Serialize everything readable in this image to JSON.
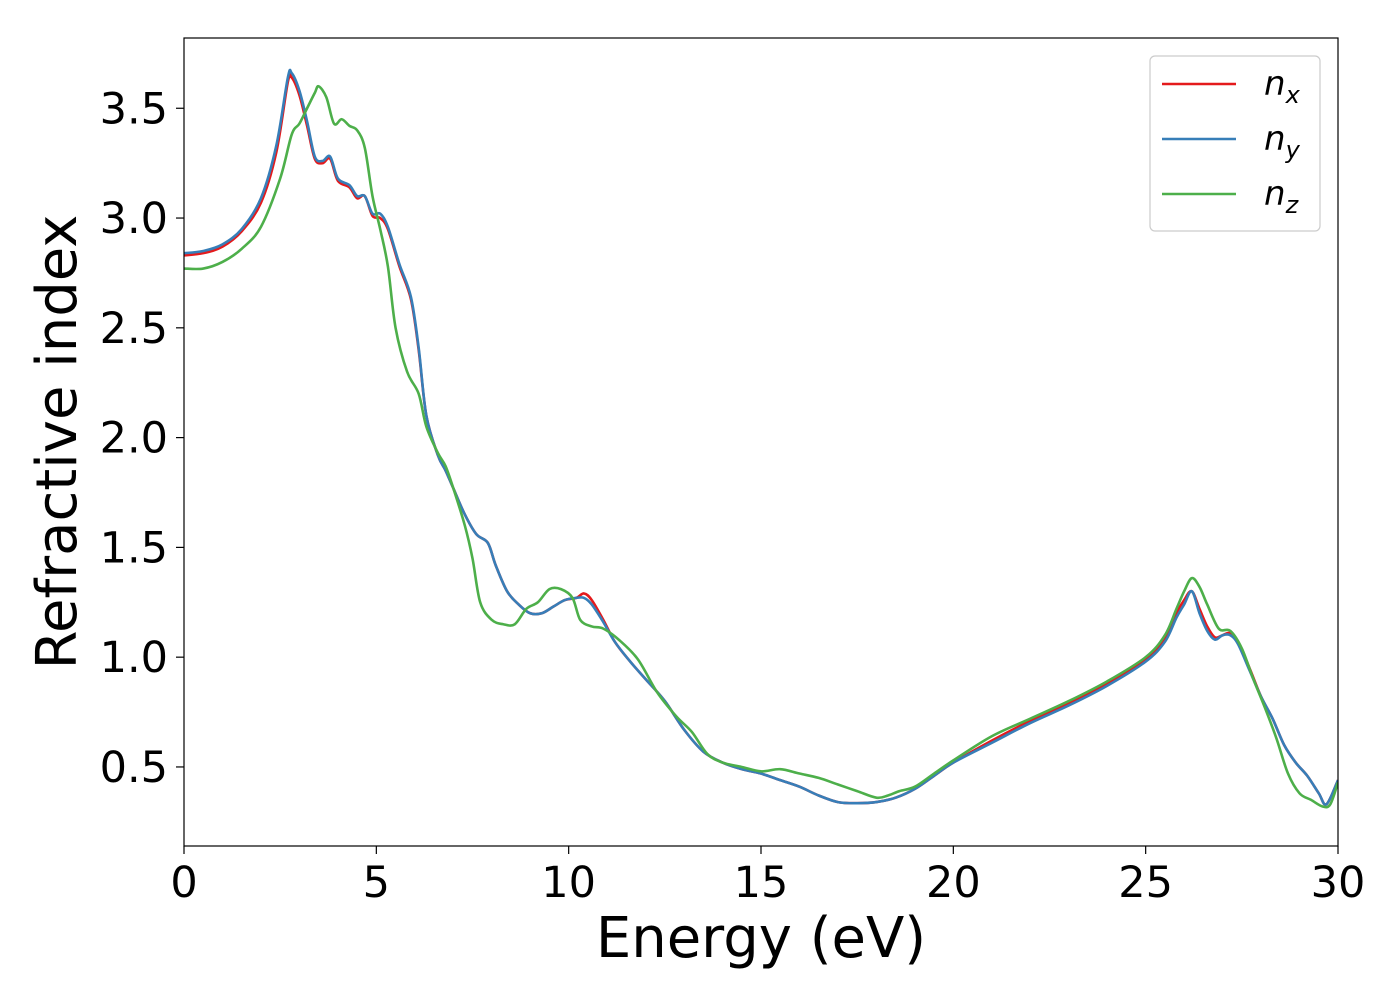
{
  "chart_data": {
    "type": "line",
    "xlabel": "Energy (eV)",
    "ylabel": "Refractive index",
    "xlim": [
      0,
      30
    ],
    "ylim": [
      0.14,
      3.82
    ],
    "xticks": [
      0,
      5,
      10,
      15,
      20,
      25,
      30
    ],
    "yticks": [
      0.5,
      1.0,
      1.5,
      2.0,
      2.5,
      3.0,
      3.5
    ],
    "xtick_labels": [
      "0",
      "5",
      "10",
      "15",
      "20",
      "25",
      "30"
    ],
    "ytick_labels": [
      "0.5",
      "1.0",
      "1.5",
      "2.0",
      "2.5",
      "3.0",
      "3.5"
    ],
    "grid": false,
    "legend_position": "top-right",
    "series": [
      {
        "name": "n_x",
        "legend_base": "n",
        "legend_sub": "x",
        "color": "#e41a1c",
        "points": [
          [
            0,
            2.83
          ],
          [
            0.5,
            2.84
          ],
          [
            1.0,
            2.87
          ],
          [
            1.5,
            2.94
          ],
          [
            2.0,
            3.07
          ],
          [
            2.4,
            3.3
          ],
          [
            2.7,
            3.62
          ],
          [
            2.8,
            3.64
          ],
          [
            3.0,
            3.56
          ],
          [
            3.2,
            3.42
          ],
          [
            3.4,
            3.27
          ],
          [
            3.6,
            3.25
          ],
          [
            3.8,
            3.27
          ],
          [
            4.0,
            3.17
          ],
          [
            4.3,
            3.14
          ],
          [
            4.5,
            3.09
          ],
          [
            4.7,
            3.1
          ],
          [
            4.9,
            3.01
          ],
          [
            5.1,
            3.0
          ],
          [
            5.3,
            2.95
          ],
          [
            5.6,
            2.78
          ],
          [
            5.9,
            2.63
          ],
          [
            6.1,
            2.4
          ],
          [
            6.3,
            2.1
          ],
          [
            6.6,
            1.92
          ],
          [
            6.8,
            1.85
          ],
          [
            7.0,
            1.77
          ],
          [
            7.3,
            1.65
          ],
          [
            7.6,
            1.56
          ],
          [
            7.9,
            1.52
          ],
          [
            8.1,
            1.42
          ],
          [
            8.4,
            1.3
          ],
          [
            8.7,
            1.24
          ],
          [
            9.0,
            1.2
          ],
          [
            9.3,
            1.2
          ],
          [
            9.6,
            1.23
          ],
          [
            9.9,
            1.26
          ],
          [
            10.2,
            1.27
          ],
          [
            10.4,
            1.29
          ],
          [
            10.6,
            1.26
          ],
          [
            10.9,
            1.17
          ],
          [
            11.2,
            1.07
          ],
          [
            11.6,
            0.98
          ],
          [
            12.0,
            0.9
          ],
          [
            12.5,
            0.8
          ],
          [
            13.0,
            0.67
          ],
          [
            13.5,
            0.57
          ],
          [
            14.0,
            0.52
          ],
          [
            14.5,
            0.49
          ],
          [
            15.0,
            0.47
          ],
          [
            15.5,
            0.44
          ],
          [
            16.0,
            0.41
          ],
          [
            16.5,
            0.37
          ],
          [
            17.0,
            0.34
          ],
          [
            17.5,
            0.335
          ],
          [
            18.0,
            0.34
          ],
          [
            18.5,
            0.36
          ],
          [
            19.0,
            0.4
          ],
          [
            19.5,
            0.46
          ],
          [
            20.0,
            0.52
          ],
          [
            21.0,
            0.62
          ],
          [
            22.0,
            0.71
          ],
          [
            23.0,
            0.79
          ],
          [
            24.0,
            0.88
          ],
          [
            25.0,
            0.99
          ],
          [
            25.5,
            1.08
          ],
          [
            25.8,
            1.2
          ],
          [
            26.0,
            1.26
          ],
          [
            26.2,
            1.3
          ],
          [
            26.4,
            1.22
          ],
          [
            26.6,
            1.14
          ],
          [
            26.8,
            1.09
          ],
          [
            27.0,
            1.1
          ],
          [
            27.2,
            1.11
          ],
          [
            27.4,
            1.07
          ],
          [
            27.7,
            0.95
          ],
          [
            28.0,
            0.82
          ],
          [
            28.3,
            0.72
          ],
          [
            28.6,
            0.6
          ],
          [
            28.9,
            0.52
          ],
          [
            29.2,
            0.46
          ],
          [
            29.5,
            0.38
          ],
          [
            29.7,
            0.33
          ],
          [
            30.0,
            0.44
          ]
        ]
      },
      {
        "name": "n_y",
        "legend_base": "n",
        "legend_sub": "y",
        "color": "#377eb8",
        "points": [
          [
            0,
            2.84
          ],
          [
            0.5,
            2.85
          ],
          [
            1.0,
            2.88
          ],
          [
            1.5,
            2.95
          ],
          [
            2.0,
            3.09
          ],
          [
            2.4,
            3.33
          ],
          [
            2.7,
            3.64
          ],
          [
            2.8,
            3.66
          ],
          [
            3.0,
            3.58
          ],
          [
            3.2,
            3.44
          ],
          [
            3.4,
            3.28
          ],
          [
            3.6,
            3.26
          ],
          [
            3.8,
            3.28
          ],
          [
            4.0,
            3.18
          ],
          [
            4.3,
            3.15
          ],
          [
            4.5,
            3.1
          ],
          [
            4.7,
            3.1
          ],
          [
            4.9,
            3.02
          ],
          [
            5.1,
            3.02
          ],
          [
            5.3,
            2.96
          ],
          [
            5.6,
            2.79
          ],
          [
            5.9,
            2.64
          ],
          [
            6.1,
            2.41
          ],
          [
            6.3,
            2.1
          ],
          [
            6.6,
            1.92
          ],
          [
            6.8,
            1.85
          ],
          [
            7.0,
            1.77
          ],
          [
            7.3,
            1.65
          ],
          [
            7.6,
            1.56
          ],
          [
            7.9,
            1.52
          ],
          [
            8.1,
            1.42
          ],
          [
            8.4,
            1.3
          ],
          [
            8.7,
            1.24
          ],
          [
            9.0,
            1.2
          ],
          [
            9.3,
            1.2
          ],
          [
            9.6,
            1.23
          ],
          [
            9.9,
            1.26
          ],
          [
            10.2,
            1.27
          ],
          [
            10.4,
            1.27
          ],
          [
            10.6,
            1.24
          ],
          [
            10.9,
            1.16
          ],
          [
            11.2,
            1.07
          ],
          [
            11.6,
            0.98
          ],
          [
            12.0,
            0.9
          ],
          [
            12.5,
            0.8
          ],
          [
            13.0,
            0.67
          ],
          [
            13.5,
            0.57
          ],
          [
            14.0,
            0.52
          ],
          [
            14.5,
            0.49
          ],
          [
            15.0,
            0.47
          ],
          [
            15.5,
            0.44
          ],
          [
            16.0,
            0.41
          ],
          [
            16.5,
            0.37
          ],
          [
            17.0,
            0.34
          ],
          [
            17.5,
            0.335
          ],
          [
            18.0,
            0.34
          ],
          [
            18.5,
            0.36
          ],
          [
            19.0,
            0.4
          ],
          [
            19.5,
            0.46
          ],
          [
            20.0,
            0.52
          ],
          [
            21.0,
            0.61
          ],
          [
            22.0,
            0.7
          ],
          [
            23.0,
            0.78
          ],
          [
            24.0,
            0.87
          ],
          [
            25.0,
            0.98
          ],
          [
            25.5,
            1.07
          ],
          [
            25.8,
            1.18
          ],
          [
            26.0,
            1.24
          ],
          [
            26.2,
            1.3
          ],
          [
            26.4,
            1.2
          ],
          [
            26.6,
            1.12
          ],
          [
            26.8,
            1.08
          ],
          [
            27.0,
            1.1
          ],
          [
            27.2,
            1.1
          ],
          [
            27.4,
            1.06
          ],
          [
            27.7,
            0.94
          ],
          [
            28.0,
            0.82
          ],
          [
            28.3,
            0.72
          ],
          [
            28.6,
            0.6
          ],
          [
            28.9,
            0.52
          ],
          [
            29.2,
            0.46
          ],
          [
            29.5,
            0.38
          ],
          [
            29.7,
            0.33
          ],
          [
            30.0,
            0.44
          ]
        ]
      },
      {
        "name": "n_z",
        "legend_base": "n",
        "legend_sub": "z",
        "color": "#4daf4a",
        "points": [
          [
            0,
            2.77
          ],
          [
            0.5,
            2.77
          ],
          [
            1.0,
            2.8
          ],
          [
            1.5,
            2.86
          ],
          [
            2.0,
            2.96
          ],
          [
            2.5,
            3.18
          ],
          [
            2.8,
            3.38
          ],
          [
            3.0,
            3.43
          ],
          [
            3.2,
            3.5
          ],
          [
            3.4,
            3.57
          ],
          [
            3.5,
            3.6
          ],
          [
            3.7,
            3.55
          ],
          [
            3.9,
            3.43
          ],
          [
            4.1,
            3.45
          ],
          [
            4.3,
            3.42
          ],
          [
            4.5,
            3.4
          ],
          [
            4.7,
            3.32
          ],
          [
            4.9,
            3.1
          ],
          [
            5.1,
            2.95
          ],
          [
            5.3,
            2.78
          ],
          [
            5.5,
            2.5
          ],
          [
            5.8,
            2.3
          ],
          [
            6.1,
            2.2
          ],
          [
            6.3,
            2.05
          ],
          [
            6.6,
            1.93
          ],
          [
            6.8,
            1.87
          ],
          [
            7.0,
            1.77
          ],
          [
            7.3,
            1.6
          ],
          [
            7.5,
            1.45
          ],
          [
            7.7,
            1.25
          ],
          [
            8.0,
            1.17
          ],
          [
            8.3,
            1.15
          ],
          [
            8.6,
            1.15
          ],
          [
            8.9,
            1.22
          ],
          [
            9.2,
            1.25
          ],
          [
            9.5,
            1.31
          ],
          [
            9.8,
            1.31
          ],
          [
            10.1,
            1.27
          ],
          [
            10.3,
            1.17
          ],
          [
            10.6,
            1.14
          ],
          [
            10.9,
            1.13
          ],
          [
            11.3,
            1.08
          ],
          [
            11.8,
            0.99
          ],
          [
            12.3,
            0.84
          ],
          [
            12.8,
            0.73
          ],
          [
            13.2,
            0.66
          ],
          [
            13.6,
            0.56
          ],
          [
            14.0,
            0.52
          ],
          [
            14.5,
            0.5
          ],
          [
            15.0,
            0.48
          ],
          [
            15.5,
            0.49
          ],
          [
            16.0,
            0.47
          ],
          [
            16.5,
            0.45
          ],
          [
            17.0,
            0.42
          ],
          [
            17.5,
            0.39
          ],
          [
            18.0,
            0.36
          ],
          [
            18.3,
            0.37
          ],
          [
            18.6,
            0.39
          ],
          [
            19.0,
            0.41
          ],
          [
            19.5,
            0.47
          ],
          [
            20.0,
            0.53
          ],
          [
            21.0,
            0.64
          ],
          [
            22.0,
            0.72
          ],
          [
            23.0,
            0.8
          ],
          [
            24.0,
            0.89
          ],
          [
            25.0,
            1.0
          ],
          [
            25.5,
            1.1
          ],
          [
            25.8,
            1.22
          ],
          [
            26.0,
            1.3
          ],
          [
            26.2,
            1.36
          ],
          [
            26.4,
            1.32
          ],
          [
            26.6,
            1.24
          ],
          [
            26.9,
            1.13
          ],
          [
            27.2,
            1.12
          ],
          [
            27.5,
            1.04
          ],
          [
            27.8,
            0.9
          ],
          [
            28.1,
            0.77
          ],
          [
            28.4,
            0.63
          ],
          [
            28.7,
            0.47
          ],
          [
            29.0,
            0.38
          ],
          [
            29.3,
            0.35
          ],
          [
            29.6,
            0.32
          ],
          [
            29.8,
            0.33
          ],
          [
            30.0,
            0.43
          ]
        ]
      }
    ]
  }
}
